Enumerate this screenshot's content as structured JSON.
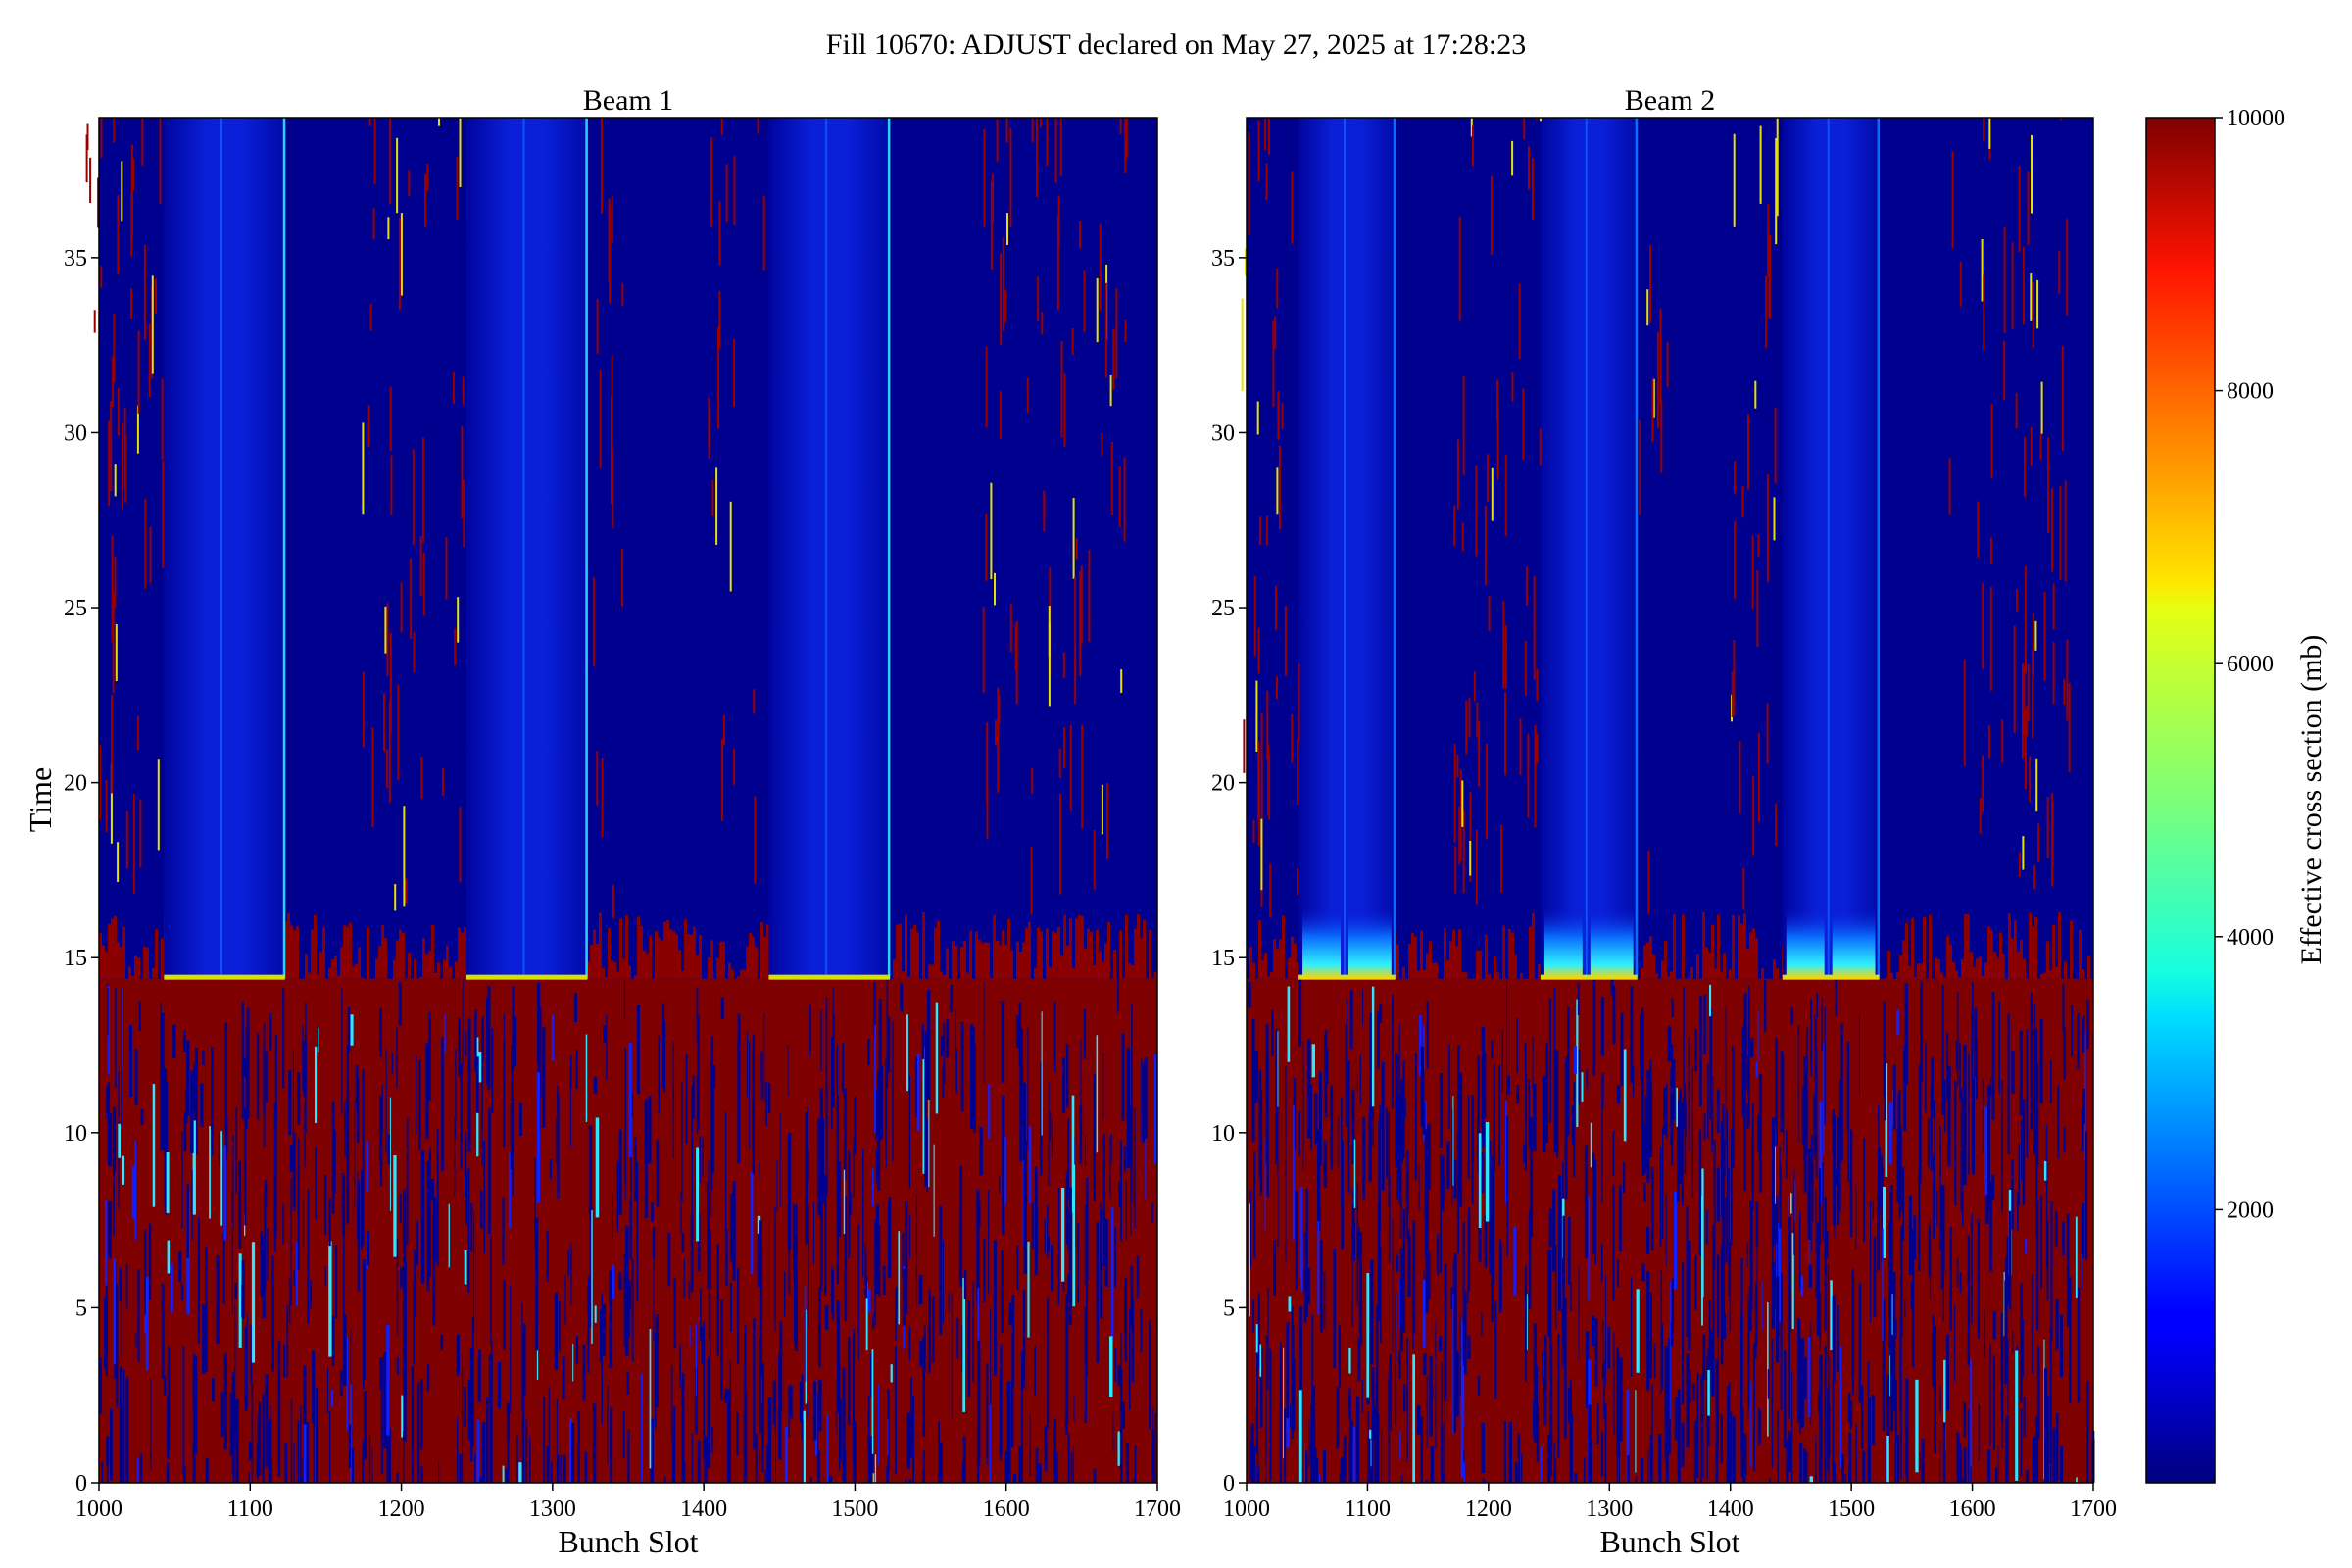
{
  "figure": {
    "title": "Fill 10670: ADJUST declared on May 27, 2025 at 17:28:23"
  },
  "chart_data": [
    {
      "type": "heatmap",
      "title": "Beam 1",
      "xlabel": "Bunch Slot",
      "ylabel": "Time",
      "xlim": [
        1000,
        1700
      ],
      "ylim": [
        0,
        39
      ],
      "x_ticks": [
        "1000",
        "1100",
        "1200",
        "1300",
        "1400",
        "1500",
        "1600",
        "1700"
      ],
      "y_ticks": [
        "0",
        "5",
        "10",
        "15",
        "20",
        "25",
        "30",
        "35"
      ],
      "noisy_region_time_max": 14.4,
      "noisy_region_edge_range": [
        14.4,
        16.3
      ],
      "filled_trains": [
        {
          "start": 1043,
          "end": 1123,
          "sub_boundary": 1081
        },
        {
          "start": 1243,
          "end": 1323,
          "sub_boundary": 1281
        },
        {
          "start": 1443,
          "end": 1523,
          "sub_boundary": 1481
        }
      ],
      "cross_section_min_mb": 0,
      "cross_section_max_mb": 10000
    },
    {
      "type": "heatmap",
      "title": "Beam 2",
      "xlabel": "Bunch Slot",
      "ylabel": "",
      "xlim": [
        1000,
        1700
      ],
      "ylim": [
        0,
        39
      ],
      "x_ticks": [
        "1000",
        "1100",
        "1200",
        "1300",
        "1400",
        "1500",
        "1600",
        "1700"
      ],
      "y_ticks": [
        "0",
        "5",
        "10",
        "15",
        "20",
        "25",
        "30",
        "35"
      ],
      "noisy_region_time_max": 14.4,
      "noisy_region_edge_range": [
        14.4,
        16.3
      ],
      "filled_trains": [
        {
          "start": 1043,
          "end": 1123,
          "sub_boundary": 1081
        },
        {
          "start": 1243,
          "end": 1323,
          "sub_boundary": 1281
        },
        {
          "start": 1443,
          "end": 1523,
          "sub_boundary": 1481
        }
      ],
      "cross_section_min_mb": 0,
      "cross_section_max_mb": 10000
    }
  ],
  "colorbar": {
    "label": "Effective cross section (mb)",
    "min": 0,
    "max": 10000,
    "ticks": [
      "2000",
      "4000",
      "6000",
      "8000",
      "10000"
    ],
    "colormap": "jet"
  }
}
